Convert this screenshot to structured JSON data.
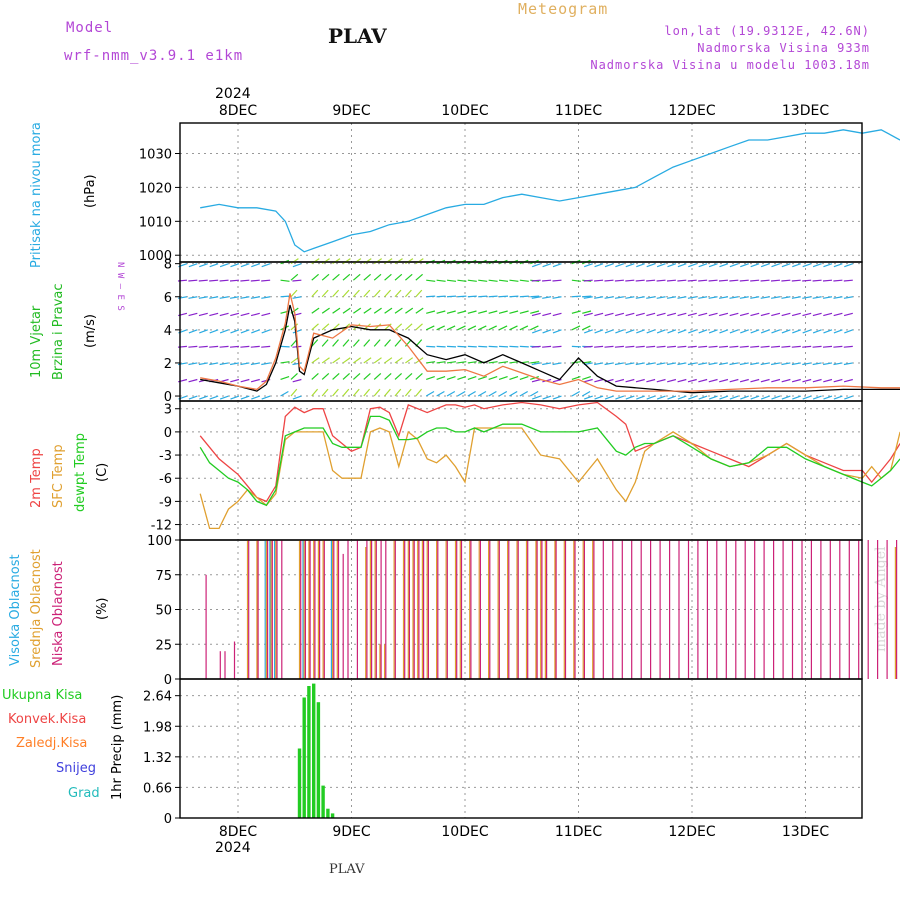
{
  "header": {
    "model_label": "Model",
    "model_name": "wrf-nmm_v3.9.1 e1km",
    "station": "PLAV",
    "product": "Meteogram",
    "coords": "lon,lat (19.9312E, 42.6N)",
    "altitude": "Nadmorska Visina 933m",
    "model_altitude": "Nadmorska Visina u modelu 1003.18m",
    "year_top": "2024",
    "year_bottom": "2024",
    "footer_station": "PLAV",
    "watermark": "made by Angel"
  },
  "colors": {
    "pressure": "#29abe2",
    "t2m": "#ee4444",
    "sfc": "#e0a030",
    "dew": "#22cc22",
    "cloud_high": "#29abe2",
    "cloud_mid": "#e0a030",
    "cloud_low": "#cc2277",
    "precip_total": "#22cc22",
    "precip_conv": "#ee4444",
    "precip_frozen": "#ff7f27",
    "precip_snow": "#4040dd",
    "precip_hail": "#22bbbb",
    "wind_label": "#22bb22",
    "ylabel_black": "#000000"
  },
  "labels": {
    "pressure": "Pritisak na nivou mora",
    "pressure_unit": "(hPa)",
    "wind1": "10m Vjetar",
    "wind2": "Brzina i Pravac",
    "wind_unit": "(m/s)",
    "t2m": "2m Temp",
    "sfc": "SFC Temp",
    "dew": "dewpt Temp",
    "temp_unit": "(C)",
    "cloud_high": "Visoka Oblacnost",
    "cloud_mid": "Srednja Oblacnost",
    "cloud_low": "Niska Oblacnost",
    "cloud_unit": "(%)",
    "precip_unit": "1hr Precip (mm)",
    "compass": [
      "N",
      "W",
      "E",
      "S"
    ],
    "legend": [
      "Ukupna Kisa",
      "Konvek.Kisa",
      "Zaledj.Kisa",
      "Snijeg",
      "Grad"
    ]
  },
  "chart_data": [
    {
      "type": "line",
      "title": "Pritisak na nivou mora",
      "ylabel": "(hPa)",
      "x_ticks": [
        "8DEC",
        "9DEC",
        "10DEC",
        "11DEC",
        "12DEC",
        "13DEC"
      ],
      "ylim": [
        998,
        1039
      ],
      "yticks": [
        1000,
        1010,
        1020,
        1030
      ],
      "x_hours_from_8dec_00": [
        -8,
        -4,
        0,
        4,
        8,
        10,
        12,
        14,
        16,
        20,
        24,
        28,
        32,
        36,
        40,
        44,
        48,
        52,
        56,
        60,
        64,
        68,
        72,
        76,
        80,
        84,
        88,
        92,
        96,
        100,
        104,
        108,
        112,
        116,
        120,
        124,
        128,
        132,
        136,
        140
      ],
      "values": [
        1014,
        1015,
        1014,
        1014,
        1013,
        1010,
        1003,
        1001,
        1002,
        1004,
        1006,
        1007,
        1009,
        1010,
        1012,
        1014,
        1015,
        1015,
        1017,
        1018,
        1017,
        1016,
        1017,
        1018,
        1019,
        1020,
        1023,
        1026,
        1028,
        1030,
        1032,
        1034,
        1034,
        1035,
        1036,
        1036,
        1037,
        1036,
        1037,
        1034
      ]
    },
    {
      "type": "line",
      "title": "10m Vjetar Brzina i Pravac",
      "ylabel": "(m/s)",
      "ylim": [
        -0.3,
        8.1
      ],
      "yticks": [
        0,
        2,
        4,
        6,
        8
      ],
      "x_hours_from_8dec_00": [
        -8,
        -4,
        0,
        4,
        6,
        8,
        10,
        11,
        12,
        13,
        14,
        16,
        20,
        24,
        28,
        32,
        36,
        40,
        44,
        48,
        52,
        56,
        60,
        64,
        68,
        72,
        76,
        80,
        88,
        96,
        104,
        112,
        120,
        128,
        136,
        140
      ],
      "series": [
        {
          "values": [
            1.0,
            0.8,
            0.6,
            0.3,
            0.7,
            2.0,
            4.0,
            5.5,
            4.5,
            1.5,
            1.3,
            3.5,
            4.0,
            4.2,
            4.0,
            4.0,
            3.5,
            2.5,
            2.2,
            2.5,
            2.0,
            2.5,
            2.0,
            1.5,
            1.0,
            2.3,
            1.2,
            0.6,
            0.4,
            0.2,
            0.3,
            0.3,
            0.3,
            0.4,
            0.4,
            0.4
          ]
        },
        {
          "values": [
            1.1,
            0.9,
            0.6,
            0.4,
            0.9,
            2.3,
            4.4,
            6.2,
            5.0,
            1.8,
            1.5,
            3.8,
            3.5,
            4.3,
            4.2,
            4.3,
            3.0,
            1.5,
            1.5,
            1.6,
            1.2,
            1.8,
            1.4,
            1.0,
            0.7,
            1.0,
            0.5,
            0.3,
            0.3,
            0.3,
            0.4,
            0.5,
            0.5,
            0.6,
            0.5,
            0.5
          ]
        }
      ]
    },
    {
      "type": "line",
      "title": "Temp",
      "ylabel": "(C)",
      "ylim": [
        -14,
        4
      ],
      "yticks": [
        3,
        0,
        -3,
        -6,
        -9,
        -12
      ],
      "x_hours_from_8dec_00": [
        -8,
        -6,
        -4,
        -2,
        0,
        2,
        4,
        6,
        8,
        10,
        12,
        14,
        16,
        18,
        20,
        22,
        24,
        26,
        28,
        30,
        32,
        34,
        36,
        38,
        40,
        42,
        44,
        46,
        48,
        50,
        52,
        56,
        60,
        64,
        68,
        72,
        76,
        80,
        82,
        84,
        86,
        88,
        92,
        96,
        100,
        104,
        108,
        112,
        116,
        120,
        124,
        128,
        132,
        134,
        136,
        138,
        140
      ],
      "series": [
        {
          "name": "2m Temp",
          "values": [
            -0.5,
            -2.0,
            -3.5,
            -4.5,
            -5.5,
            -7.0,
            -8.5,
            -9.0,
            -7.0,
            2.0,
            3.2,
            2.5,
            3.0,
            3.0,
            -0.5,
            -1.5,
            -2.5,
            -2.0,
            3.0,
            3.2,
            2.5,
            -0.5,
            3.5,
            3.0,
            2.5,
            3.0,
            3.5,
            3.5,
            3.2,
            3.5,
            3.0,
            3.5,
            3.8,
            3.5,
            3.0,
            3.5,
            3.8,
            2.0,
            1.0,
            -2.5,
            -2.0,
            -1.5,
            -0.5,
            -1.5,
            -2.5,
            -3.5,
            -4.5,
            -3.0,
            -1.5,
            -3.0,
            -4.0,
            -5.0,
            -5.0,
            -6.5,
            -5.0,
            -3.5,
            -1.5
          ]
        },
        {
          "name": "SFC Temp",
          "values": [
            -8.0,
            -12.5,
            -12.5,
            -10.0,
            -9.0,
            -7.5,
            -8.5,
            -9.5,
            -8.0,
            -1.0,
            0.0,
            0.0,
            0.0,
            0.0,
            -5.0,
            -6.0,
            -6.0,
            -6.0,
            0.0,
            0.5,
            0.0,
            -4.5,
            0.0,
            -1.0,
            -3.5,
            -4.0,
            -3.0,
            -4.5,
            -6.5,
            0.5,
            0.5,
            0.5,
            0.5,
            -3.0,
            -3.5,
            -6.5,
            -3.5,
            -7.5,
            -9.0,
            -6.5,
            -2.5,
            -1.5,
            0.0,
            -1.5,
            -3.5,
            -4.5,
            -4.0,
            -3.0,
            -1.5,
            -3.0,
            -4.5,
            -5.5,
            -6.0,
            -4.5,
            -6.0,
            -5.0,
            0.0
          ]
        },
        {
          "name": "dewpt Temp",
          "values": [
            -2.0,
            -4.0,
            -5.0,
            -6.0,
            -6.5,
            -7.5,
            -9.0,
            -9.5,
            -7.5,
            -0.5,
            0.0,
            0.5,
            0.5,
            0.5,
            -1.5,
            -2.0,
            -2.0,
            -2.0,
            2.0,
            2.0,
            1.5,
            -1.0,
            -1.0,
            -0.8,
            0.0,
            0.5,
            0.5,
            0.0,
            0.0,
            0.5,
            0.0,
            1.0,
            1.0,
            0.0,
            0.0,
            0.0,
            0.5,
            -2.5,
            -3.0,
            -2.0,
            -1.5,
            -1.5,
            -0.5,
            -2.0,
            -3.5,
            -4.5,
            -4.0,
            -2.0,
            -2.0,
            -3.5,
            -4.5,
            -5.5,
            -6.5,
            -7.0,
            -6.0,
            -5.0,
            -3.5
          ]
        }
      ]
    },
    {
      "type": "bar",
      "title": "Oblacnost",
      "ylabel": "(%)",
      "ylim": [
        0,
        100
      ],
      "yticks": [
        0,
        25,
        50,
        75,
        100
      ],
      "x_hours_from_8dec_00": [
        -7,
        -4,
        -3,
        -1,
        2,
        4,
        6,
        7,
        8,
        9,
        13,
        14,
        15,
        16,
        17,
        18,
        20,
        21,
        22,
        23,
        25,
        27,
        28,
        29,
        30,
        31,
        33,
        35,
        36,
        37,
        38,
        39,
        40,
        42,
        44,
        46,
        47,
        49,
        51,
        53,
        55,
        57,
        59,
        61,
        63,
        64,
        65,
        67,
        69,
        71,
        73,
        75,
        77,
        79,
        81,
        83,
        85,
        87,
        89,
        91,
        93,
        95,
        97,
        99,
        101,
        103,
        105,
        107,
        109,
        111,
        113,
        115,
        117,
        119,
        121,
        123,
        125,
        127,
        129,
        131,
        133,
        135,
        137,
        139
      ],
      "series": [
        {
          "name": "Visoka Oblacnost",
          "values": [
            0,
            0,
            0,
            0,
            0,
            0,
            100,
            100,
            100,
            0,
            0,
            100,
            0,
            0,
            0,
            0,
            100,
            0,
            0,
            0,
            0,
            0,
            0,
            0,
            0,
            0,
            0,
            0,
            0,
            0,
            0,
            0,
            0,
            0,
            0,
            0,
            0,
            0,
            0,
            0,
            0,
            0,
            0,
            0,
            0,
            0,
            0,
            0,
            0,
            0,
            0,
            0,
            0,
            0,
            0,
            0,
            0,
            0,
            0,
            0,
            0,
            0,
            0,
            0,
            0,
            0,
            0,
            0,
            0,
            0,
            0,
            0,
            0,
            0,
            0,
            0,
            0,
            0,
            0,
            0,
            0,
            0,
            0,
            0
          ]
        },
        {
          "name": "Srednja Oblacnost",
          "values": [
            0,
            0,
            0,
            0,
            100,
            100,
            100,
            100,
            100,
            0,
            100,
            100,
            100,
            100,
            100,
            100,
            100,
            100,
            0,
            0,
            0,
            95,
            100,
            100,
            25,
            25,
            100,
            100,
            100,
            100,
            100,
            100,
            100,
            100,
            100,
            100,
            100,
            100,
            100,
            100,
            100,
            100,
            100,
            100,
            100,
            100,
            100,
            100,
            100,
            100,
            100,
            100,
            0,
            0,
            0,
            0,
            0,
            0,
            0,
            0,
            0,
            0,
            0,
            0,
            0,
            0,
            0,
            0,
            0,
            0,
            0,
            0,
            0,
            0,
            0,
            0,
            0,
            0,
            0,
            0,
            0,
            0,
            0,
            95
          ]
        },
        {
          "name": "Niska Oblacnost",
          "values": [
            75,
            20,
            20,
            27,
            100,
            100,
            100,
            100,
            100,
            100,
            100,
            100,
            100,
            100,
            100,
            100,
            100,
            100,
            90,
            100,
            100,
            100,
            100,
            100,
            100,
            100,
            100,
            100,
            100,
            100,
            100,
            100,
            100,
            100,
            100,
            100,
            100,
            100,
            100,
            100,
            100,
            100,
            100,
            100,
            100,
            100,
            100,
            100,
            100,
            100,
            100,
            100,
            100,
            100,
            100,
            100,
            100,
            100,
            100,
            100,
            100,
            100,
            100,
            100,
            100,
            100,
            100,
            100,
            100,
            100,
            100,
            100,
            100,
            100,
            100,
            100,
            100,
            100,
            100,
            100,
            100,
            100,
            100,
            100
          ]
        }
      ]
    },
    {
      "type": "bar",
      "title": "1hr Precip",
      "ylabel": "1hr Precip (mm)",
      "ylim": [
        0,
        3.0
      ],
      "yticks": [
        0,
        0.66,
        1.32,
        1.98,
        2.64
      ],
      "x_hours_from_8dec_00": [
        13,
        14,
        15,
        16,
        17,
        18,
        19,
        20,
        21,
        22
      ],
      "series": [
        {
          "name": "Ukupna Kisa",
          "values": [
            1.5,
            2.6,
            2.85,
            2.9,
            2.5,
            0.7,
            0.2,
            0.1,
            0.0,
            0.0
          ]
        }
      ]
    }
  ]
}
